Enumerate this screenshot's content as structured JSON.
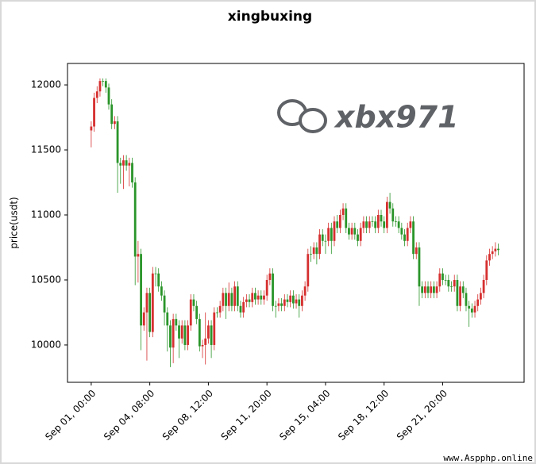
{
  "chart_data": {
    "type": "candlestick",
    "title": "xingbuxing",
    "y_label": "price(usdt)",
    "watermark": "xbx971",
    "footer": "www.Aspphp.online",
    "up_color": "#d62f2f",
    "down_color": "#2a952a",
    "ylim": [
      9713,
      12165
    ],
    "yticks": [
      10000,
      10500,
      11000,
      11500,
      12000
    ],
    "xlim": [
      -8.1,
      147.8
    ],
    "xticks": [
      {
        "value": 0,
        "label": "Sep 01, 00:00"
      },
      {
        "value": 20,
        "label": "Sep 04, 08:00"
      },
      {
        "value": 40,
        "label": "Sep 08, 12:00"
      },
      {
        "value": 60,
        "label": "Sep 11, 20:00"
      },
      {
        "value": 80,
        "label": "Sep 15, 04:00"
      },
      {
        "value": 100,
        "label": "Sep 18, 12:00"
      },
      {
        "value": 120,
        "label": "Sep 21, 20:00"
      }
    ],
    "open": [
      11650,
      11680,
      11900,
      11950,
      12030,
      12030,
      11980,
      11850,
      11700,
      11720,
      11400,
      11380,
      11420,
      11380,
      11400,
      11250,
      10680,
      10700,
      10150,
      10250,
      10400,
      10100,
      10550,
      10550,
      10450,
      10380,
      10250,
      10150,
      9980,
      10200,
      10150,
      10050,
      10150,
      10000,
      10150,
      10350,
      10300,
      10200,
      9990,
      10000,
      10050,
      10150,
      10000,
      10250,
      10250,
      10300,
      10400,
      10300,
      10400,
      10300,
      10450,
      10300,
      10250,
      10330,
      10350,
      10330,
      10400,
      10350,
      10380,
      10350,
      10380,
      10500,
      10550,
      10300,
      10300,
      10320,
      10300,
      10350,
      10330,
      10380,
      10320,
      10350,
      10300,
      10380,
      10450,
      10700,
      10700,
      10750,
      10700,
      10850,
      10800,
      10800,
      10900,
      10800,
      10950,
      10900,
      11000,
      11050,
      10900,
      10850,
      10900,
      10850,
      10800,
      10900,
      10950,
      10900,
      10950,
      10950,
      10900,
      11000,
      10950,
      10900,
      11100,
      11050,
      10950,
      10950,
      10900,
      10850,
      10800,
      10900,
      10950,
      10700,
      10750,
      10450,
      10400,
      10450,
      10400,
      10450,
      10400,
      10450,
      10550,
      10500,
      10500,
      10450,
      10450,
      10500,
      10300,
      10450,
      10400,
      10300,
      10280,
      10250,
      10300,
      10350,
      10400,
      10500,
      10650,
      10700,
      10720,
      10740
    ],
    "high": [
      11720,
      11940,
      11990,
      12050,
      12050,
      12050,
      12010,
      11890,
      11760,
      11760,
      11440,
      11460,
      11460,
      11440,
      11440,
      11290,
      10800,
      10740,
      10290,
      10440,
      10440,
      10600,
      10600,
      10590,
      10490,
      10420,
      10290,
      10190,
      10240,
      10240,
      10190,
      10190,
      10190,
      10190,
      10390,
      10390,
      10340,
      10240,
      10040,
      10250,
      10190,
      10190,
      10290,
      10290,
      10340,
      10440,
      10440,
      10480,
      10440,
      10490,
      10490,
      10340,
      10370,
      10390,
      10390,
      10440,
      10440,
      10420,
      10420,
      10420,
      10540,
      10590,
      10590,
      10340,
      10360,
      10360,
      10390,
      10390,
      10420,
      10420,
      10390,
      10390,
      10420,
      10490,
      10740,
      10760,
      10790,
      10790,
      10890,
      10890,
      10850,
      10940,
      10940,
      10990,
      11000,
      11040,
      11090,
      11090,
      10940,
      10940,
      10940,
      10890,
      10940,
      10990,
      10990,
      10990,
      10990,
      10990,
      11040,
      11040,
      10990,
      11140,
      11170,
      11090,
      10990,
      10990,
      10940,
      10890,
      10940,
      10990,
      10990,
      10790,
      10790,
      10490,
      10490,
      10490,
      10490,
      10490,
      10490,
      10590,
      10590,
      10540,
      10540,
      10490,
      10540,
      10540,
      10490,
      10490,
      10440,
      10340,
      10320,
      10340,
      10390,
      10440,
      10540,
      10690,
      10740,
      10760,
      10790,
      10780
    ],
    "low": [
      11520,
      11640,
      11860,
      11910,
      11990,
      11940,
      11810,
      11660,
      11660,
      11170,
      11240,
      11200,
      11340,
      11220,
      11210,
      10460,
      10480,
      9960,
      10110,
      9880,
      10060,
      10060,
      10450,
      10410,
      10340,
      10150,
      9950,
      9830,
      9860,
      10110,
      9900,
      10010,
      9960,
      9960,
      10110,
      10260,
      10160,
      9950,
      9900,
      9850,
      10010,
      9900,
      9960,
      10210,
      10210,
      10260,
      10200,
      10260,
      10260,
      10260,
      10260,
      10210,
      10210,
      10290,
      10290,
      10290,
      10310,
      10310,
      10310,
      10310,
      10340,
      10460,
      10260,
      10210,
      10260,
      10260,
      10260,
      10290,
      10290,
      10280,
      10280,
      10210,
      10260,
      10340,
      10410,
      10640,
      10660,
      10620,
      10660,
      10760,
      10700,
      10760,
      10700,
      10760,
      10860,
      10860,
      10960,
      10860,
      10810,
      10810,
      10810,
      10760,
      10760,
      10860,
      10860,
      10860,
      10910,
      10860,
      10860,
      10910,
      10860,
      10860,
      11010,
      10910,
      10910,
      10860,
      10810,
      10760,
      10760,
      10860,
      10660,
      10660,
      10300,
      10360,
      10360,
      10360,
      10360,
      10360,
      10360,
      10410,
      10460,
      10460,
      10410,
      10410,
      10410,
      10260,
      10260,
      10360,
      10260,
      10140,
      10210,
      10210,
      10260,
      10310,
      10360,
      10460,
      10610,
      10660,
      10680,
      10690
    ],
    "close": [
      11680,
      11900,
      11950,
      12030,
      12030,
      11980,
      11850,
      11700,
      11720,
      11400,
      11380,
      11420,
      11380,
      11400,
      11250,
      10680,
      10700,
      10150,
      10250,
      10400,
      10100,
      10550,
      10550,
      10450,
      10380,
      10250,
      10150,
      9980,
      10200,
      10150,
      10050,
      10150,
      10000,
      10150,
      10350,
      10300,
      10200,
      9990,
      10000,
      10050,
      10150,
      10000,
      10250,
      10250,
      10300,
      10400,
      10300,
      10400,
      10300,
      10450,
      10300,
      10250,
      10330,
      10350,
      10330,
      10400,
      10350,
      10380,
      10350,
      10380,
      10500,
      10550,
      10300,
      10300,
      10320,
      10300,
      10350,
      10330,
      10380,
      10320,
      10350,
      10300,
      10380,
      10450,
      10700,
      10700,
      10750,
      10700,
      10850,
      10800,
      10800,
      10900,
      10800,
      10950,
      10900,
      11000,
      11050,
      10900,
      10850,
      10900,
      10850,
      10800,
      10900,
      10950,
      10900,
      10950,
      10950,
      10900,
      11000,
      10950,
      10900,
      11100,
      11050,
      10950,
      10950,
      10900,
      10850,
      10800,
      10900,
      10950,
      10700,
      10750,
      10450,
      10400,
      10450,
      10400,
      10450,
      10400,
      10450,
      10550,
      10500,
      10500,
      10450,
      10450,
      10500,
      10300,
      10450,
      10400,
      10300,
      10280,
      10250,
      10300,
      10350,
      10400,
      10500,
      10650,
      10700,
      10720,
      10740,
      10730
    ]
  }
}
